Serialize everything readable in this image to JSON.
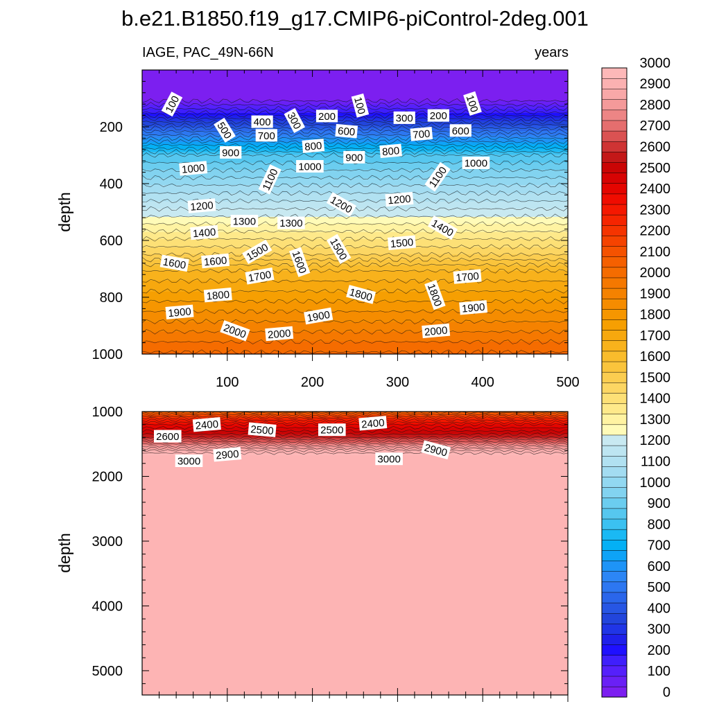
{
  "chart_data": {
    "type": "heatmap",
    "title": "b.e21.B1850.f19_g17.CMIP6-piControl-2deg.001",
    "subtitle_left": "IAGE, PAC_49N-66N",
    "subtitle_right": "years",
    "xlim": [
      0,
      500
    ],
    "x_ticks": [
      100,
      200,
      300,
      400,
      500
    ],
    "x_tick_labels": [
      "100",
      "200",
      "300",
      "400",
      "500"
    ],
    "panels": [
      {
        "name": "upper",
        "ylabel": "depth",
        "ylim": [
          0,
          1000
        ],
        "y_ticks": [
          200,
          400,
          600,
          800,
          1000
        ],
        "y_tick_labels": [
          "200",
          "400",
          "600",
          "800",
          "1000"
        ],
        "depth_value_profile": [
          [
            0,
            0
          ],
          [
            95,
            0
          ],
          [
            150,
            200
          ],
          [
            200,
            430
          ],
          [
            300,
            850
          ],
          [
            400,
            1040
          ],
          [
            500,
            1220
          ],
          [
            600,
            1410
          ],
          [
            650,
            1500
          ],
          [
            700,
            1640
          ],
          [
            800,
            1780
          ],
          [
            900,
            1920
          ],
          [
            1000,
            2060
          ]
        ],
        "contour_labels": [
          {
            "text": "100",
            "x": 35,
            "y": 120,
            "angle": -62
          },
          {
            "text": "500",
            "x": 97,
            "y": 212,
            "angle": 58
          },
          {
            "text": "400",
            "x": 141,
            "y": 182,
            "angle": 0
          },
          {
            "text": "300",
            "x": 179,
            "y": 178,
            "angle": 62
          },
          {
            "text": "200",
            "x": 217,
            "y": 162,
            "angle": 0
          },
          {
            "text": "100",
            "x": 256,
            "y": 125,
            "angle": 75
          },
          {
            "text": "300",
            "x": 308,
            "y": 168,
            "angle": 0
          },
          {
            "text": "200",
            "x": 348,
            "y": 160,
            "angle": 0
          },
          {
            "text": "100",
            "x": 388,
            "y": 118,
            "angle": 72
          },
          {
            "text": "700",
            "x": 146,
            "y": 230,
            "angle": 0
          },
          {
            "text": "600",
            "x": 240,
            "y": 215,
            "angle": 5
          },
          {
            "text": "800",
            "x": 201,
            "y": 267,
            "angle": -5
          },
          {
            "text": "900",
            "x": 249,
            "y": 307,
            "angle": 0
          },
          {
            "text": "800",
            "x": 292,
            "y": 285,
            "angle": -5
          },
          {
            "text": "700",
            "x": 328,
            "y": 225,
            "angle": -5
          },
          {
            "text": "600",
            "x": 374,
            "y": 213,
            "angle": 0
          },
          {
            "text": "900",
            "x": 104,
            "y": 290,
            "angle": 0
          },
          {
            "text": "1000",
            "x": 60,
            "y": 346,
            "angle": -5
          },
          {
            "text": "1000",
            "x": 197,
            "y": 339,
            "angle": 0
          },
          {
            "text": "1100",
            "x": 150,
            "y": 385,
            "angle": -65
          },
          {
            "text": "1000",
            "x": 392,
            "y": 327,
            "angle": 0
          },
          {
            "text": "1100",
            "x": 347,
            "y": 376,
            "angle": -55
          },
          {
            "text": "1200",
            "x": 70,
            "y": 478,
            "angle": -5
          },
          {
            "text": "1200",
            "x": 234,
            "y": 473,
            "angle": 30
          },
          {
            "text": "1200",
            "x": 302,
            "y": 455,
            "angle": -5
          },
          {
            "text": "1300",
            "x": 120,
            "y": 532,
            "angle": 0
          },
          {
            "text": "1300",
            "x": 175,
            "y": 538,
            "angle": 0
          },
          {
            "text": "1400",
            "x": 73,
            "y": 572,
            "angle": -5
          },
          {
            "text": "1400",
            "x": 353,
            "y": 555,
            "angle": 30
          },
          {
            "text": "1500",
            "x": 135,
            "y": 640,
            "angle": -30
          },
          {
            "text": "1500",
            "x": 231,
            "y": 630,
            "angle": 60
          },
          {
            "text": "1500",
            "x": 305,
            "y": 608,
            "angle": -5
          },
          {
            "text": "1600",
            "x": 38,
            "y": 680,
            "angle": 10
          },
          {
            "text": "1600",
            "x": 86,
            "y": 672,
            "angle": -5
          },
          {
            "text": "1600",
            "x": 185,
            "y": 676,
            "angle": 70
          },
          {
            "text": "1700",
            "x": 138,
            "y": 725,
            "angle": -10
          },
          {
            "text": "1700",
            "x": 382,
            "y": 727,
            "angle": -5
          },
          {
            "text": "1800",
            "x": 89,
            "y": 792,
            "angle": -5
          },
          {
            "text": "1800",
            "x": 257,
            "y": 790,
            "angle": 15
          },
          {
            "text": "1800",
            "x": 344,
            "y": 792,
            "angle": 70
          },
          {
            "text": "1900",
            "x": 44,
            "y": 852,
            "angle": -5
          },
          {
            "text": "1900",
            "x": 207,
            "y": 866,
            "angle": -10
          },
          {
            "text": "1900",
            "x": 389,
            "y": 836,
            "angle": -5
          },
          {
            "text": "2000",
            "x": 109,
            "y": 918,
            "angle": 20
          },
          {
            "text": "2000",
            "x": 161,
            "y": 928,
            "angle": -5
          },
          {
            "text": "2000",
            "x": 345,
            "y": 918,
            "angle": -5
          }
        ]
      },
      {
        "name": "lower",
        "ylabel": "depth",
        "ylim": [
          1000,
          5375
        ],
        "y_ticks": [
          1000,
          2000,
          3000,
          4000,
          5000
        ],
        "y_tick_labels": [
          "1000",
          "2000",
          "3000",
          "4000",
          "5000"
        ],
        "depth_value_profile": [
          [
            1000,
            2070
          ],
          [
            1100,
            2250
          ],
          [
            1200,
            2400
          ],
          [
            1300,
            2500
          ],
          [
            1400,
            2600
          ],
          [
            1500,
            2750
          ],
          [
            1600,
            2900
          ],
          [
            1680,
            3000
          ],
          [
            1750,
            3100
          ],
          [
            5375,
            3100
          ]
        ],
        "contour_labels": [
          {
            "text": "2600",
            "x": 30,
            "y": 1380,
            "angle": 0
          },
          {
            "text": "2400",
            "x": 76,
            "y": 1200,
            "angle": -5
          },
          {
            "text": "2500",
            "x": 141,
            "y": 1280,
            "angle": 5
          },
          {
            "text": "2500",
            "x": 223,
            "y": 1280,
            "angle": 0
          },
          {
            "text": "2400",
            "x": 271,
            "y": 1180,
            "angle": -5
          },
          {
            "text": "2900",
            "x": 100,
            "y": 1660,
            "angle": -5
          },
          {
            "text": "3000",
            "x": 55,
            "y": 1760,
            "angle": 0
          },
          {
            "text": "3000",
            "x": 290,
            "y": 1730,
            "angle": 0
          },
          {
            "text": "2900",
            "x": 345,
            "y": 1590,
            "angle": 15
          }
        ]
      }
    ],
    "colorbar": {
      "levels": [
        0,
        50,
        100,
        150,
        200,
        250,
        300,
        350,
        400,
        450,
        500,
        550,
        600,
        650,
        700,
        750,
        800,
        850,
        900,
        950,
        1000,
        1050,
        1100,
        1150,
        1200,
        1250,
        1300,
        1350,
        1400,
        1450,
        1500,
        1550,
        1600,
        1650,
        1700,
        1750,
        1800,
        1850,
        1900,
        1950,
        2000,
        2050,
        2100,
        2150,
        2200,
        2250,
        2300,
        2350,
        2400,
        2450,
        2500,
        2550,
        2600,
        2650,
        2700,
        2750,
        2800,
        2850,
        2900,
        2950,
        3000
      ],
      "tick_labels": [
        "0",
        "100",
        "200",
        "300",
        "400",
        "500",
        "600",
        "700",
        "800",
        "900",
        "1000",
        "1100",
        "1200",
        "1300",
        "1400",
        "1500",
        "1600",
        "1700",
        "1800",
        "1900",
        "2000",
        "2100",
        "2200",
        "2300",
        "2400",
        "2500",
        "2600",
        "2700",
        "2800",
        "2900",
        "3000"
      ],
      "colors": [
        "#7c1ff0",
        "#6a20f5",
        "#5520fb",
        "#3f1ffc",
        "#1f10ff",
        "#1f20ea",
        "#2035e6",
        "#2245dc",
        "#2756e4",
        "#2a66eb",
        "#2d77f1",
        "#2c86f5",
        "#1e94f7",
        "#0ea3f7",
        "#04b0f5",
        "#1ab9f4",
        "#3bc1f1",
        "#56c7ef",
        "#6bcdef",
        "#82d3f0",
        "#92d8f1",
        "#a3dcf1",
        "#b1e1f1",
        "#bde5f1",
        "#c8e9f1",
        "#fffbb8",
        "#fff3a2",
        "#fee98a",
        "#fde076",
        "#fcd663",
        "#fbcd50",
        "#fac43c",
        "#f9bc2c",
        "#f8b21c",
        "#f7a80e",
        "#f69f02",
        "#f69600",
        "#f58c00",
        "#f58200",
        "#f57800",
        "#f56c00",
        "#f56000",
        "#f55200",
        "#f54300",
        "#f53400",
        "#f52500",
        "#f51800",
        "#f00c00",
        "#e40500",
        "#d70303",
        "#ca0505",
        "#c31818",
        "#cf3434",
        "#da5252",
        "#e56e6e",
        "#ed8585",
        "#f49a9a",
        "#f8a8a8",
        "#fbb1b1",
        "#fdb8b8"
      ],
      "over_color": "#fdb4b4"
    }
  }
}
